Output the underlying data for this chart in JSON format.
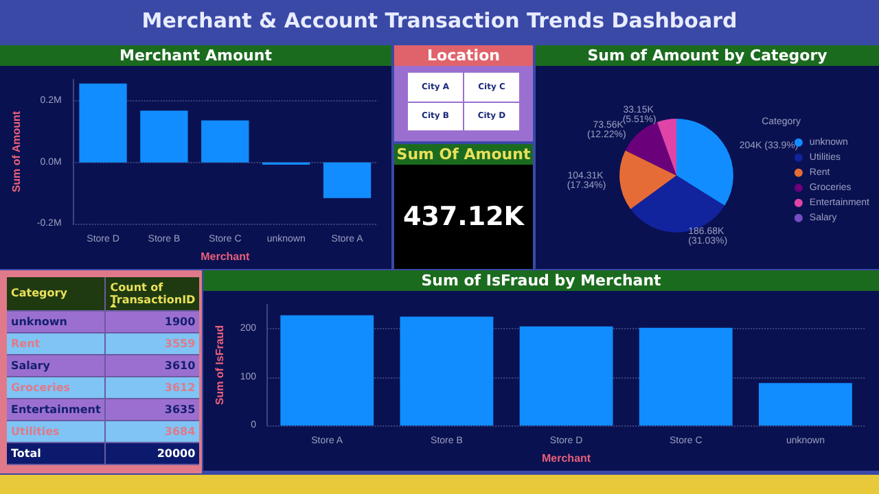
{
  "chart_data": [
    {
      "type": "other",
      "title": "Merchant & Account Transaction Trends Dashboard"
    },
    {
      "type": "bar",
      "title": "Merchant Amount",
      "xlabel": "Merchant",
      "ylabel": "Sum of Amount",
      "categories": [
        "Store D",
        "Store B",
        "Store C",
        "unknown",
        "Store A"
      ],
      "values": [
        0.257,
        0.169,
        0.137,
        -0.007,
        -0.116
      ],
      "color": "#118dff",
      "ylim": [
        -0.2,
        0.27
      ],
      "yticks": [
        {
          "value": -0.2,
          "label": "-0.2M"
        },
        {
          "value": 0,
          "label": "0.0M"
        },
        {
          "value": 0.2,
          "label": "0.2M"
        }
      ],
      "grid": "y"
    },
    {
      "type": "other",
      "title": "Location",
      "categories": [
        "City A",
        "City C",
        "City B",
        "City D"
      ]
    },
    {
      "type": "other",
      "title": "Sum Of Amount",
      "annotations": [
        "437.12K"
      ]
    },
    {
      "type": "pie",
      "title": "Sum of Amount by Category",
      "legend_title": "Category",
      "legend": "right",
      "categories": [
        "unknown",
        "Utilities",
        "Rent",
        "Groceries",
        "Entertainment",
        "Salary"
      ],
      "values": [
        204000,
        186680,
        104310,
        73560,
        33150,
        0
      ],
      "colors": [
        "#118dff",
        "#12239e",
        "#e66c37",
        "#6b007b",
        "#e044a7",
        "#744ec2"
      ],
      "value_labels": [
        "204K (33.9%)",
        "186.68K (31.03%)",
        "104.31K (17.34%)",
        "73.56K (12.22%)",
        "33.15K (5.51%)",
        null
      ]
    },
    {
      "type": "other",
      "categories": [
        "unknown",
        "Rent",
        "Salary",
        "Groceries",
        "Entertainment",
        "Utilities"
      ],
      "values": [
        1900,
        3559,
        3610,
        3612,
        3635,
        3684
      ],
      "data_labels": true,
      "annotations": [
        "Category",
        "Count of TransactionID",
        "Total",
        "20000"
      ]
    },
    {
      "type": "bar",
      "title": "Sum of IsFraud by Merchant",
      "xlabel": "Merchant",
      "ylabel": "Sum of IsFraud",
      "categories": [
        "Store A",
        "Store B",
        "Store D",
        "Store C",
        "unknown"
      ],
      "values": [
        228,
        225,
        205,
        202,
        88
      ],
      "color": "#118dff",
      "ylim": [
        0,
        250
      ],
      "yticks": [
        0,
        100,
        200
      ],
      "grid": "y"
    }
  ]
}
